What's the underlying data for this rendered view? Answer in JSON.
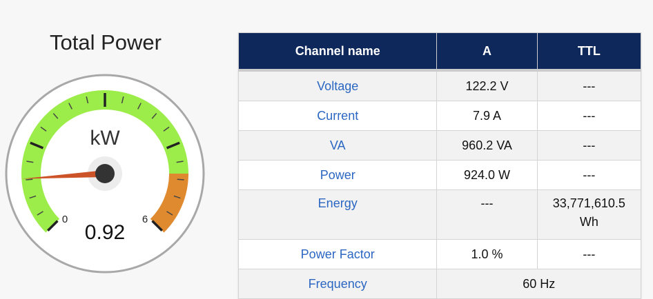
{
  "gauge": {
    "title": "Total Power",
    "unit": "kW",
    "value": 0.92,
    "value_label": "0.92",
    "min": 0,
    "max": 6,
    "min_label": "0",
    "max_label": "6",
    "bands": [
      {
        "from": 0,
        "to": 5,
        "color": "#9ded4a"
      },
      {
        "from": 5,
        "to": 6,
        "color": "#e08a30"
      }
    ],
    "needle_color": "#cc5227"
  },
  "table": {
    "headers": [
      "Channel name",
      "A",
      "TTL"
    ],
    "rows": [
      {
        "name": "Voltage",
        "a": "122.2 V",
        "ttl": "---"
      },
      {
        "name": "Current",
        "a": "7.9 A",
        "ttl": "---"
      },
      {
        "name": "VA",
        "a": "960.2 VA",
        "ttl": "---"
      },
      {
        "name": "Power",
        "a": "924.0 W",
        "ttl": "---"
      },
      {
        "name": "Energy",
        "a": "---",
        "ttl": "33,771,610.5 Wh"
      },
      {
        "name": "Power Factor",
        "a": "1.0 %",
        "ttl": "---"
      }
    ],
    "frequency": {
      "name": "Frequency",
      "value": "60 Hz"
    }
  }
}
